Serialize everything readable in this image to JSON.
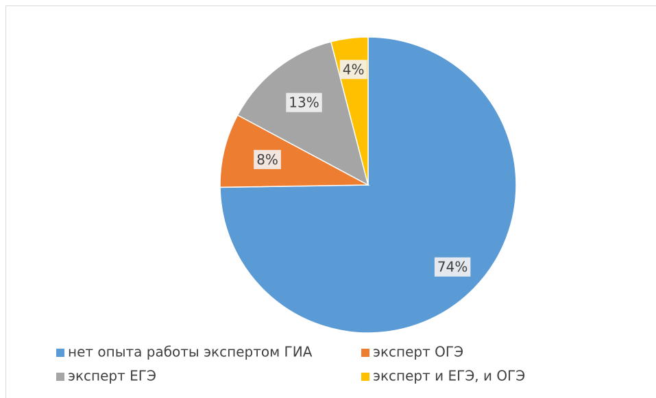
{
  "chart_data": {
    "type": "pie",
    "categories": [
      "нет опыта работы экспертом ГИА",
      "эксперт ОГЭ",
      "эксперт ЕГЭ",
      "эксперт и ЕГЭ, и ОГЭ"
    ],
    "values": [
      74,
      8,
      13,
      4
    ],
    "value_labels": [
      "74%",
      "8%",
      "13%",
      "4%"
    ],
    "colors": [
      "#5b9bd5",
      "#ed7d31",
      "#a5a5a5",
      "#ffc000"
    ],
    "legend": "bottom"
  }
}
